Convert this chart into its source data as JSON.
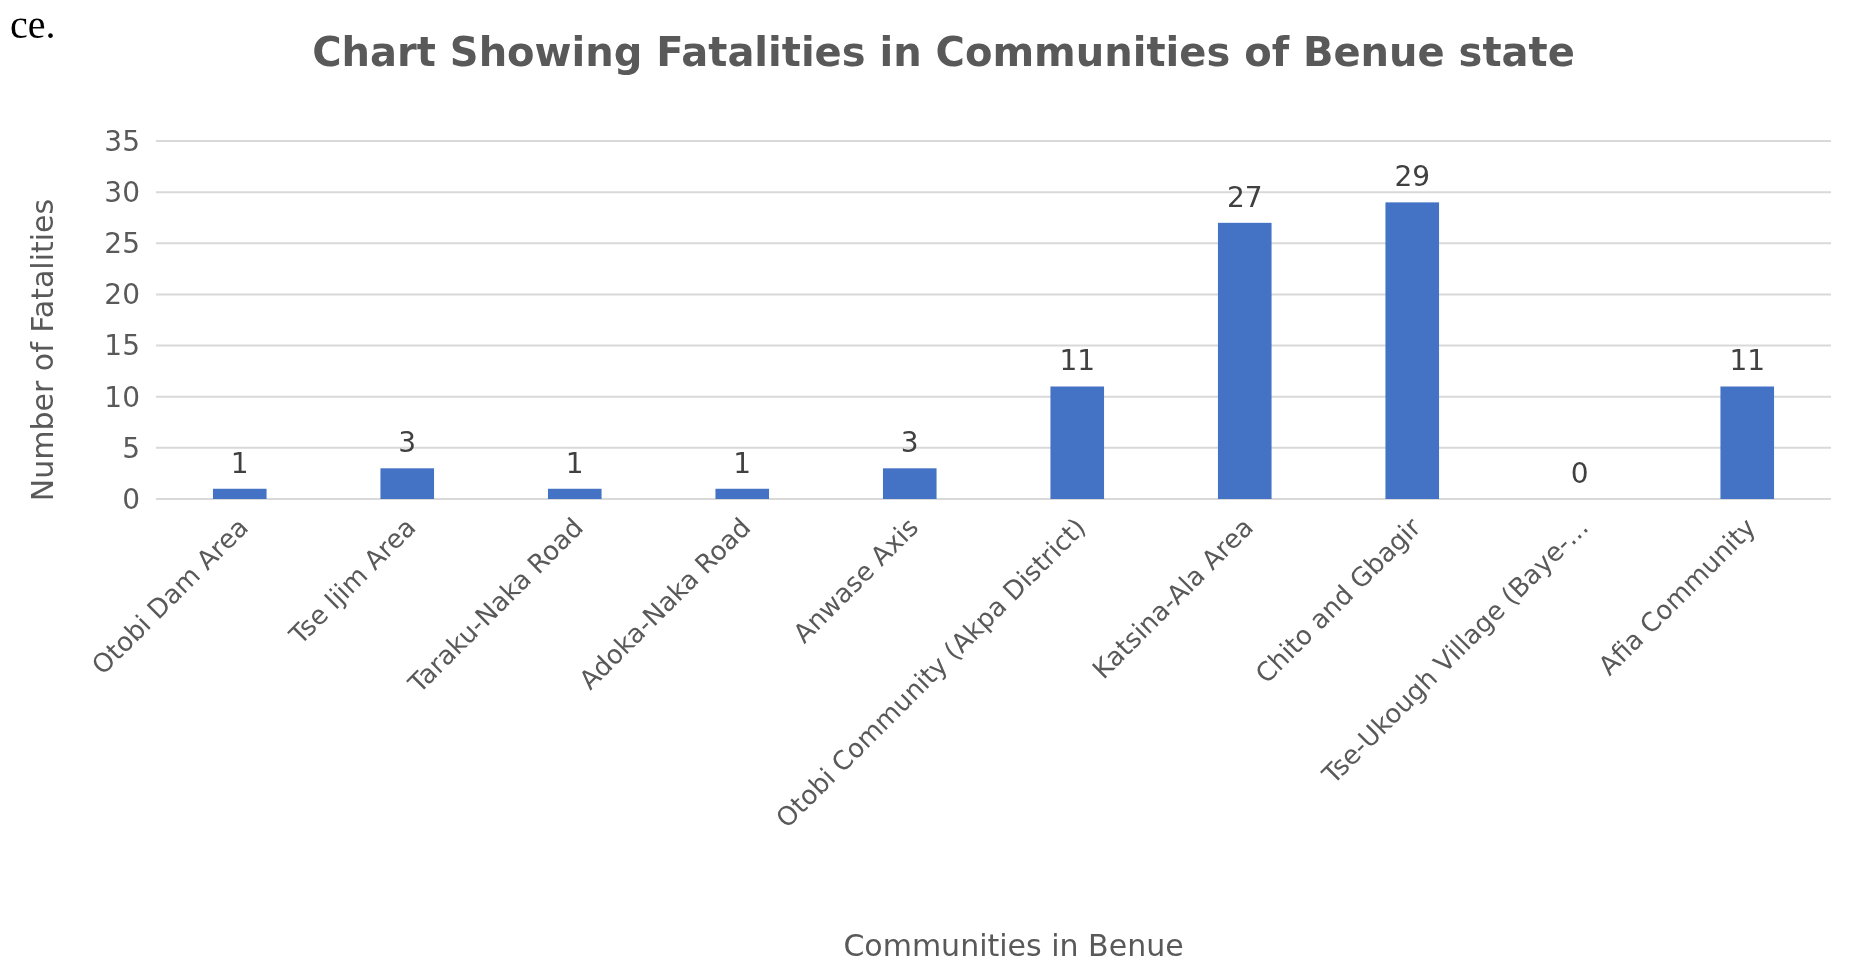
{
  "chart_data": {
    "type": "bar",
    "title": "Chart Showing Fatalities in Communities of Benue state",
    "xlabel": "Communities in Benue",
    "ylabel": "Number of Fatalities",
    "categories": [
      "Otobi Dam Area",
      "Tse Ijim Area",
      "Taraku-Naka Road",
      "Adoka-Naka Road",
      "Anwase Axis",
      "Otobi Community (Akpa District)",
      "Katsina-Ala Area",
      "Chito and Gbagir",
      "Tse-Ukough Village (Baye-...",
      "Afia Community"
    ],
    "values": [
      1,
      3,
      1,
      1,
      3,
      11,
      27,
      29,
      0,
      11
    ],
    "color": "#4472c4",
    "ylim": [
      0,
      35
    ],
    "yticks": [
      0,
      5,
      10,
      15,
      20,
      25,
      30,
      35
    ],
    "grid": "y",
    "data_labels": true,
    "annotations": [
      "ce."
    ]
  }
}
